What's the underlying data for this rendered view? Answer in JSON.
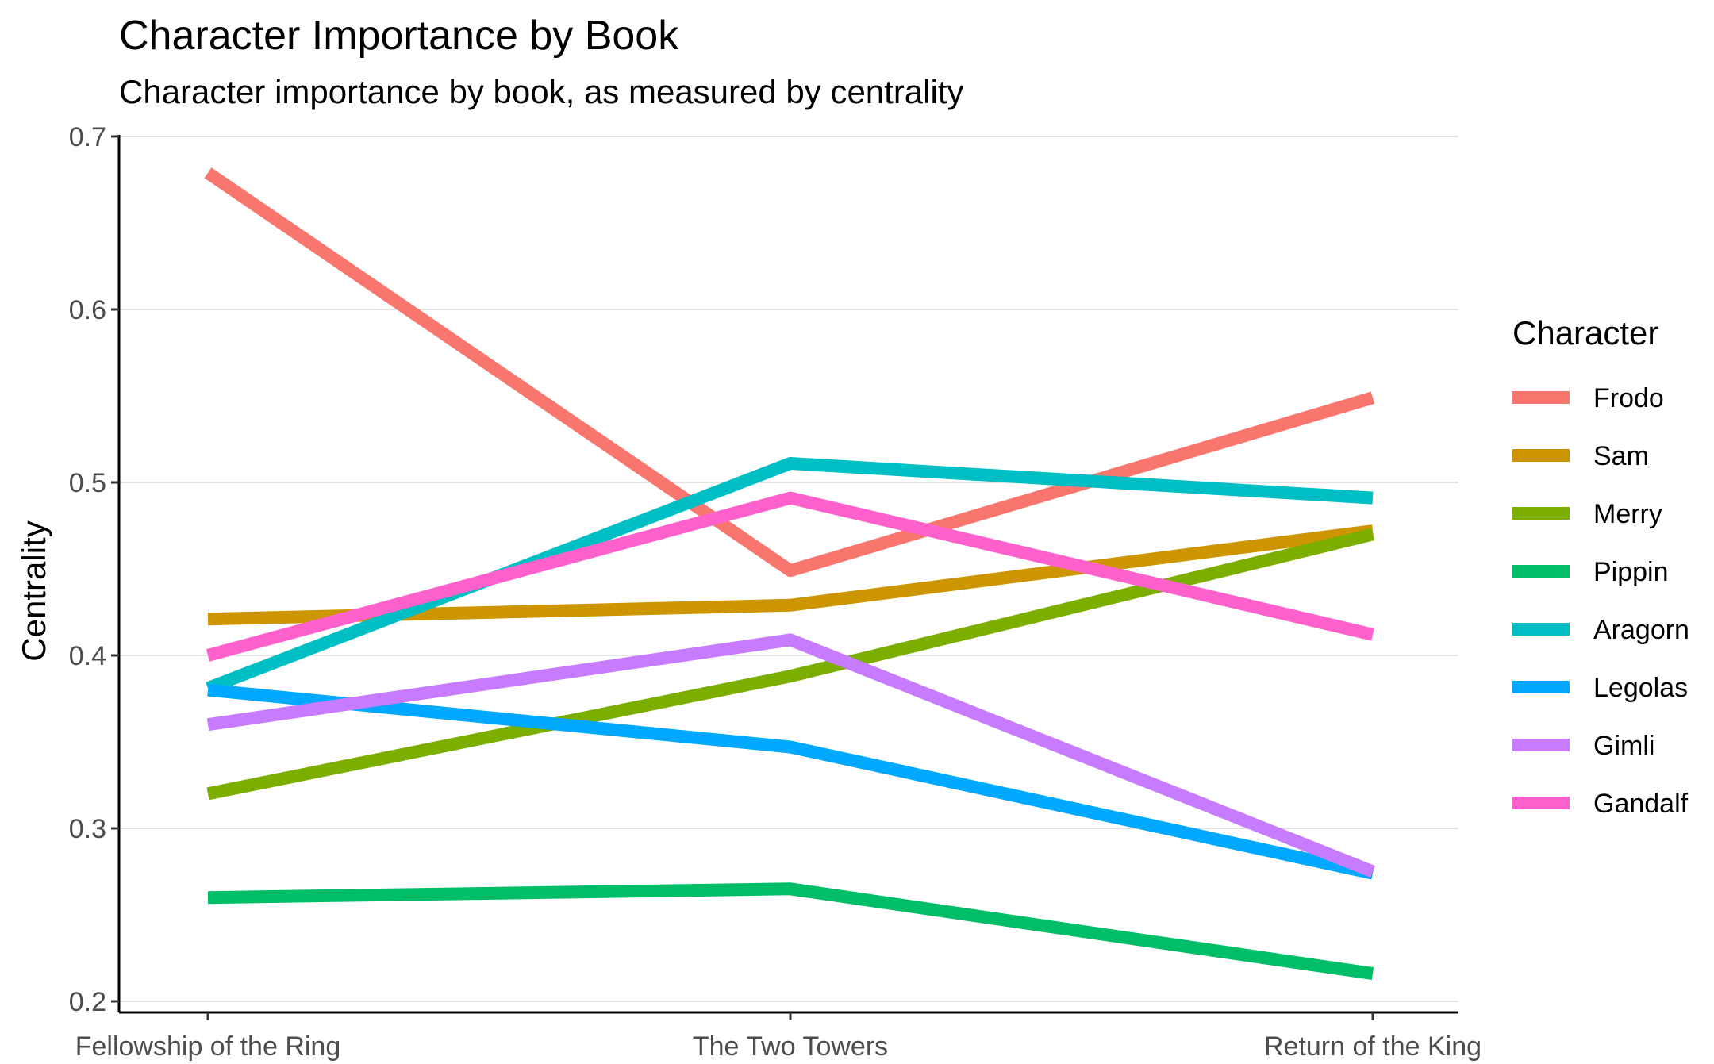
{
  "chart_data": {
    "type": "line",
    "title": "Character Importance by Book",
    "subtitle": "Character importance by book, as measured by centrality",
    "xlabel": "",
    "ylabel": "Centrality",
    "categories": [
      "Fellowship of the Ring",
      "The Two Towers",
      "Return of the King"
    ],
    "ylim": [
      0.2,
      0.7
    ],
    "yticks": [
      0.2,
      0.3,
      0.4,
      0.5,
      0.6,
      0.7
    ],
    "ytick_labels": [
      "0.2",
      "0.3",
      "0.4",
      "0.5",
      "0.6",
      "0.7"
    ],
    "grid": true,
    "legend": {
      "title": "Character",
      "position": "right"
    },
    "series": [
      {
        "name": "Frodo",
        "color": "#F8766D",
        "values": [
          0.679,
          0.449,
          0.549
        ]
      },
      {
        "name": "Sam",
        "color": "#CD9600",
        "values": [
          0.421,
          0.429,
          0.472
        ]
      },
      {
        "name": "Merry",
        "color": "#7CAE00",
        "values": [
          0.32,
          0.388,
          0.47
        ]
      },
      {
        "name": "Pippin",
        "color": "#00BE67",
        "values": [
          0.26,
          0.265,
          0.216
        ]
      },
      {
        "name": "Aragorn",
        "color": "#00BFC4",
        "values": [
          0.381,
          0.511,
          0.491
        ]
      },
      {
        "name": "Legolas",
        "color": "#00A9FF",
        "values": [
          0.38,
          0.347,
          0.274
        ]
      },
      {
        "name": "Gimli",
        "color": "#C77CFF",
        "values": [
          0.36,
          0.409,
          0.275
        ]
      },
      {
        "name": "Gandalf",
        "color": "#FF61CC",
        "values": [
          0.4,
          0.491,
          0.412
        ]
      }
    ]
  }
}
